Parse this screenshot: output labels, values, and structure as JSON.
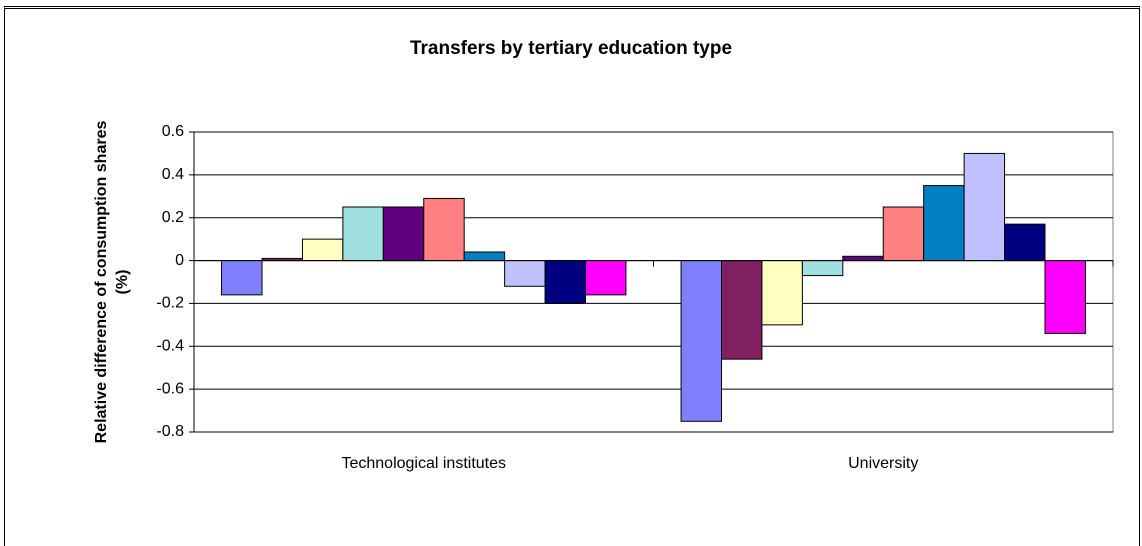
{
  "chart_data": {
    "type": "bar",
    "title": "Transfers by tertiary education type",
    "y_label": "Relative difference of consumption shares (%)",
    "categories": [
      "Technological institutes",
      "University"
    ],
    "series": [
      {
        "color": "#8080ff",
        "values": [
          -0.16,
          -0.75
        ]
      },
      {
        "color": "#802060",
        "values": [
          0.01,
          -0.46
        ]
      },
      {
        "color": "#ffffc0",
        "values": [
          0.1,
          -0.3
        ]
      },
      {
        "color": "#a0e0e0",
        "values": [
          0.25,
          -0.07
        ]
      },
      {
        "color": "#600080",
        "values": [
          0.25,
          0.02
        ]
      },
      {
        "color": "#ff8080",
        "values": [
          0.29,
          0.25
        ]
      },
      {
        "color": "#0080c0",
        "values": [
          0.04,
          0.35
        ]
      },
      {
        "color": "#c0c0ff",
        "values": [
          -0.12,
          0.5
        ]
      },
      {
        "color": "#000080",
        "values": [
          -0.2,
          0.17
        ]
      },
      {
        "color": "#ff00ff",
        "values": [
          -0.16,
          -0.34
        ]
      }
    ],
    "ylim": [
      -0.8,
      0.6
    ],
    "yticks": [
      0.6,
      0.4,
      0.2,
      0,
      -0.2,
      -0.4,
      -0.6,
      -0.8
    ],
    "grid": true
  }
}
